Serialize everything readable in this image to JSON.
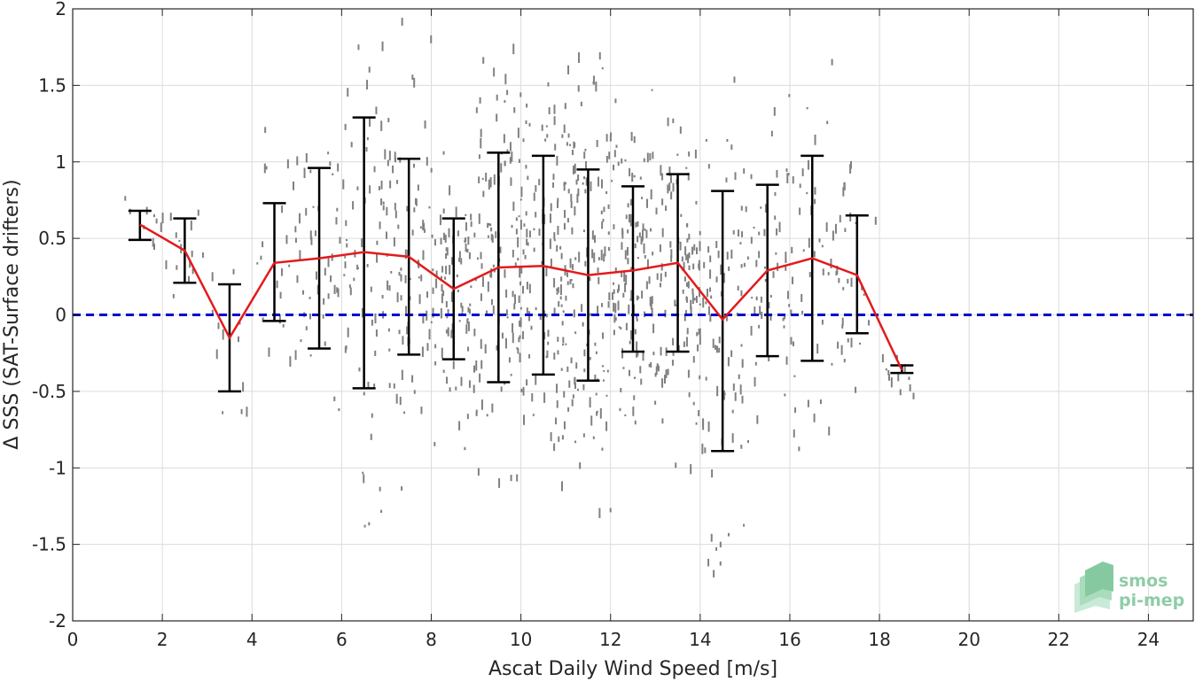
{
  "chart_data": {
    "type": "line",
    "title": "",
    "xlabel": "Ascat Daily Wind Speed [m/s]",
    "ylabel": "Δ SSS (SAT-Surface drifters)",
    "xlim": [
      0,
      25
    ],
    "ylim": [
      -2,
      2
    ],
    "x_ticks": [
      0,
      2,
      4,
      6,
      8,
      10,
      12,
      14,
      16,
      18,
      20,
      22,
      24
    ],
    "y_ticks": [
      -2,
      -1.5,
      -1,
      -0.5,
      0,
      0.5,
      1,
      1.5,
      2
    ],
    "x_tick_labels": [
      "0",
      "2",
      "4",
      "6",
      "8",
      "10",
      "12",
      "14",
      "16",
      "18",
      "20",
      "22",
      "24"
    ],
    "y_tick_labels": [
      "-2",
      "-1.5",
      "-1",
      "-0.5",
      "0",
      "0.5",
      "1",
      "1.5",
      "2"
    ],
    "grid": true,
    "mean_series": {
      "color": "#e31a1c",
      "x": [
        1.5,
        2.5,
        3.5,
        4.5,
        5.5,
        6.5,
        7.5,
        8.5,
        9.5,
        10.5,
        11.5,
        12.5,
        13.5,
        14.5,
        15.5,
        16.5,
        17.5,
        18.5
      ],
      "y": [
        0.59,
        0.42,
        -0.15,
        0.34,
        0.37,
        0.41,
        0.38,
        0.17,
        0.31,
        0.32,
        0.26,
        0.29,
        0.34,
        -0.03,
        0.29,
        0.37,
        0.26,
        -0.36
      ],
      "err_upper": [
        0.68,
        0.63,
        0.2,
        0.73,
        0.96,
        1.29,
        1.02,
        0.63,
        1.06,
        1.04,
        0.95,
        0.84,
        0.92,
        0.81,
        0.85,
        1.04,
        0.65,
        -0.33
      ],
      "err_lower": [
        0.49,
        0.21,
        -0.5,
        -0.04,
        -0.22,
        -0.48,
        -0.26,
        -0.29,
        -0.44,
        -0.39,
        -0.43,
        -0.24,
        -0.24,
        -0.89,
        -0.27,
        -0.3,
        -0.12,
        -0.38
      ]
    },
    "reference_line": {
      "y": 0,
      "color": "#0000cc",
      "style": "dashed"
    },
    "scatter_color": "#808080",
    "logo": {
      "line1": "smos",
      "line2": "pi-mep",
      "color": "#8fcca8"
    }
  }
}
